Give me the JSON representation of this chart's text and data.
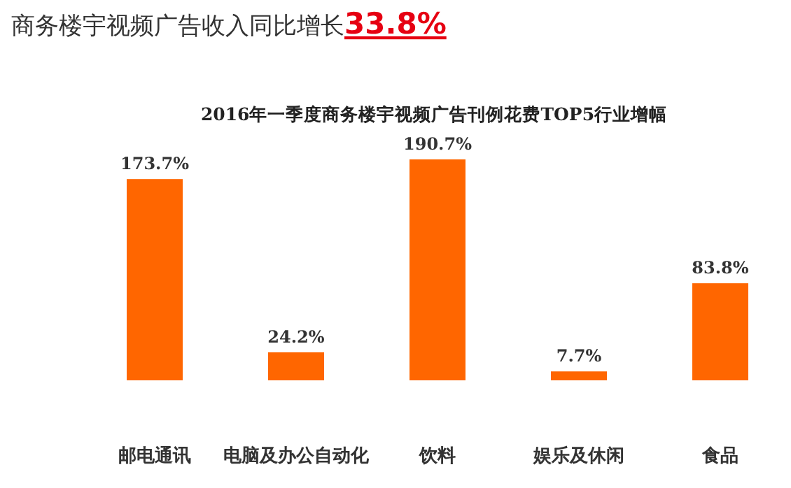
{
  "chart_data": {
    "type": "bar",
    "title": "商务楼宇视频广告收入同比增长**33.8%**",
    "subtitle": "2016年一季度商务楼宇视频广告刊例花费TOP5行业增幅",
    "categories": [
      "邮电通讯",
      "电脑及办公自动化",
      "饮料",
      "娱乐及休闲",
      "食品"
    ],
    "values": [
      173.7,
      24.2,
      190.7,
      7.7,
      83.8
    ],
    "value_labels": [
      "173.7%",
      "24.2%",
      "190.7%",
      "7.7%",
      "83.8%"
    ],
    "color": "#ff6600"
  }
}
